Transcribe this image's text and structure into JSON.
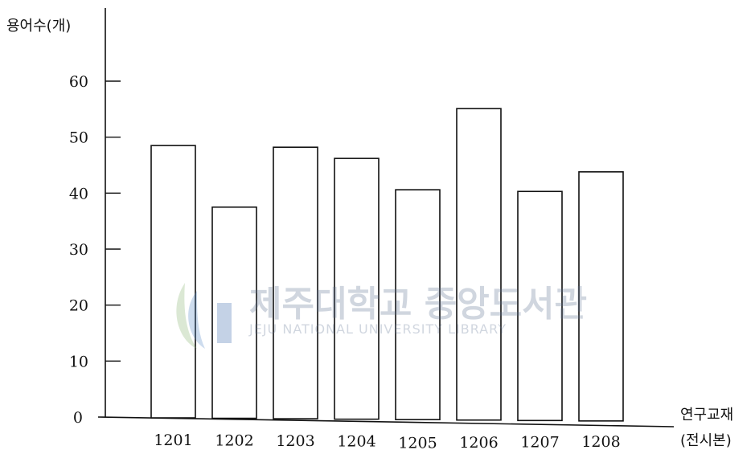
{
  "chart_data": {
    "type": "bar",
    "categories": [
      "1201",
      "1202",
      "1203",
      "1204",
      "1205",
      "1206",
      "1207",
      "1208"
    ],
    "values": [
      48.5,
      37.5,
      48.2,
      46.2,
      40.6,
      55.1,
      40.3,
      43.8
    ],
    "ylabel": "용어수(개)",
    "xlabel": "연구교재",
    "xlabel_sub": "(전시본)",
    "ylim": [
      0,
      60
    ],
    "yticks": [
      0,
      10,
      20,
      30,
      40,
      50,
      60
    ],
    "grid": false,
    "bar_fill": "#ffffff",
    "bar_stroke": "#111111"
  },
  "watermark": {
    "korean": "제주대학교 중앙도서관",
    "english": "JEJU NATIONAL UNIVERSITY LIBRARY",
    "color": "#5b6f8f"
  }
}
